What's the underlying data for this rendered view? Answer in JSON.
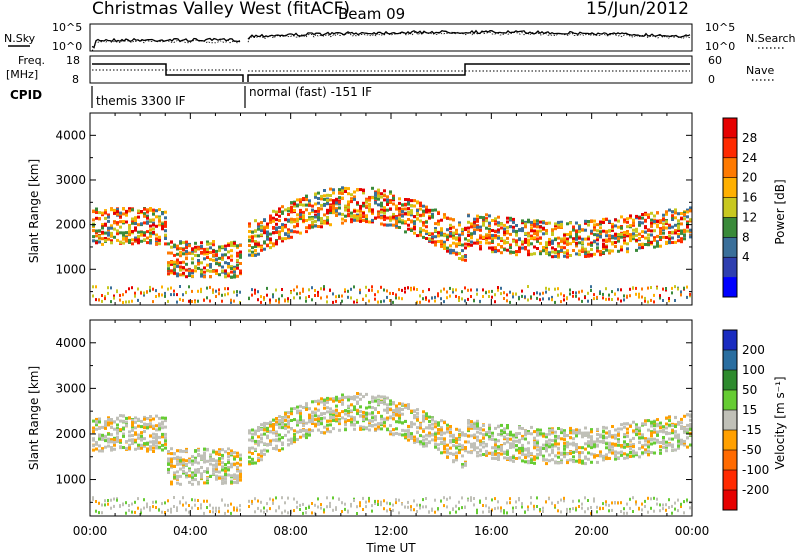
{
  "header": {
    "title": "Christmas Valley West (fitACF)",
    "beam": "Beam 09",
    "date": "15/Jun/2012"
  },
  "summary": {
    "nsky_label": "N.Sky",
    "nsearch_label": "N.Search",
    "noise_ticks_left": [
      "10^5",
      "10^0"
    ],
    "noise_ticks_right": [
      "10^5",
      "10^0"
    ],
    "freq_label_1": "Freq.",
    "freq_label_2": "[MHz]",
    "freq_ticks": [
      "18",
      "8"
    ],
    "nave_label": "Nave",
    "nave_ticks": [
      "60",
      "0"
    ],
    "cpid_label": "CPID",
    "cpid_modes": [
      "themis 3300 IF",
      "normal (fast) -151 IF"
    ]
  },
  "chart_data": [
    {
      "type": "heatmap",
      "name": "power",
      "ylabel": "Slant Range [km]",
      "y_ticks": [
        "1000",
        "2000",
        "3000",
        "4000"
      ],
      "ylim": [
        200,
        4500
      ],
      "colorbar_label": "Power [dB]",
      "colorbar_ticks": [
        "28",
        "24",
        "20",
        "16",
        "12",
        "8",
        "4"
      ],
      "colorbar_colors": [
        "#e60000",
        "#ff2a00",
        "#ff7a00",
        "#ffb000",
        "#c8c820",
        "#3a8a3a",
        "#3a6f9a",
        "#2f3fb0",
        "#0000ff"
      ]
    },
    {
      "type": "heatmap",
      "name": "velocity",
      "ylabel": "Slant Range [km]",
      "y_ticks": [
        "1000",
        "2000",
        "3000",
        "4000"
      ],
      "ylim": [
        200,
        4500
      ],
      "colorbar_label": "Velocity [m s⁻¹]",
      "colorbar_ticks": [
        "200",
        "100",
        "50",
        "15",
        "-15",
        "-50",
        "-100",
        "-200"
      ],
      "colorbar_colors": [
        "#1a2cc0",
        "#2a6ea0",
        "#2e8a2e",
        "#66cc33",
        "#c0c0b8",
        "#ffa000",
        "#ff6a00",
        "#ff2a00",
        "#e60000"
      ]
    }
  ],
  "x_axis": {
    "label": "Time UT",
    "ticks": [
      "00:00",
      "04:00",
      "08:00",
      "12:00",
      "16:00",
      "20:00",
      "00:00"
    ]
  }
}
